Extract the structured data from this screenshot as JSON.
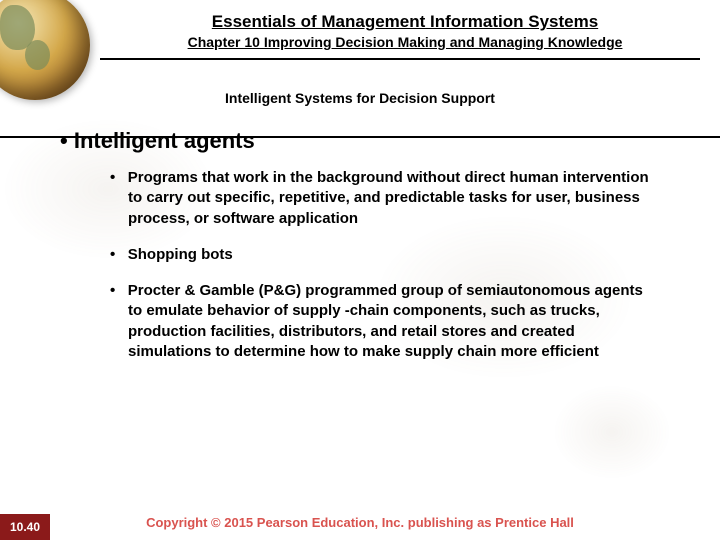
{
  "header": {
    "title_main": "Essentials of Management Information Systems",
    "title_sub": "Chapter 10 Improving Decision Making and Managing Knowledge",
    "section_title": "Intelligent Systems for Decision Support"
  },
  "content": {
    "main_bullet": "Intelligent agents",
    "sub_bullets": [
      "Programs that work in the background without direct human intervention to carry out specific, repetitive, and predictable tasks for user, business process, or software application",
      "Shopping bots",
      "Procter & Gamble (P&G) programmed group of semiautonomous agents to emulate behavior of supply -chain components, such as trucks, production facilities, distributors, and retail stores and created simulations to determine how to make supply chain more efficient"
    ]
  },
  "footer": {
    "copyright": "Copyright © 2015 Pearson Education, Inc. publishing as Prentice Hall",
    "slide_number": "10.40"
  },
  "colors": {
    "accent_red": "#8b1a1a",
    "copyright_red": "#d9534f",
    "globe_light": "#f5e8b8",
    "globe_dark": "#a8752e",
    "map_tint": "#8b7355"
  }
}
